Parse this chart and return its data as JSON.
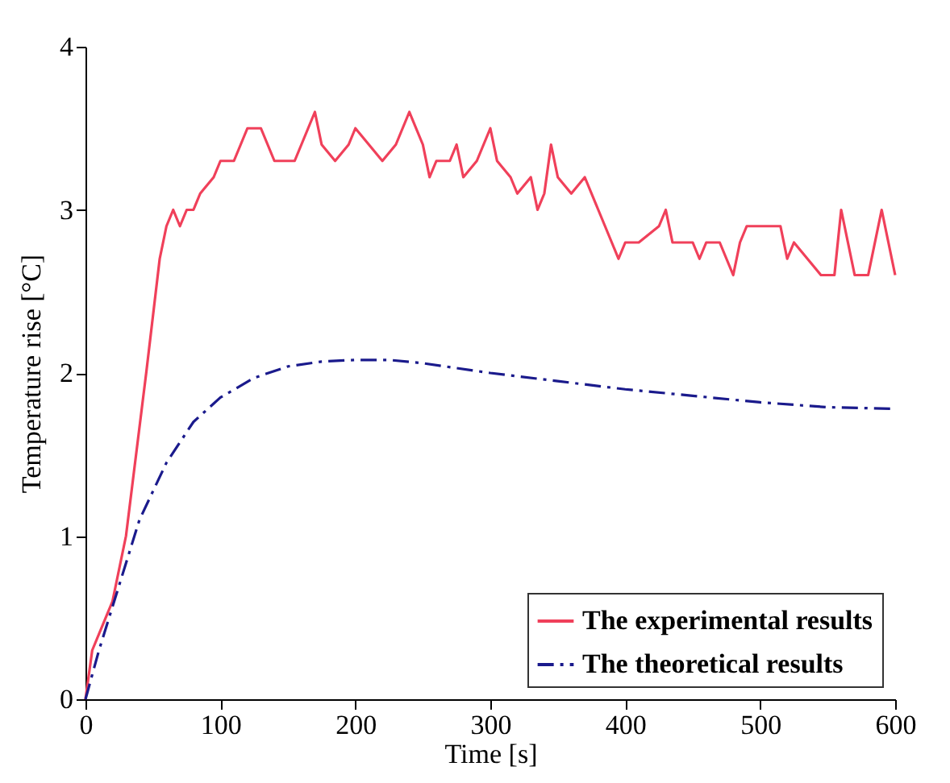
{
  "chart_data": {
    "type": "line",
    "xlabel": "Time [s]",
    "ylabel": "Temperature rise [°C]",
    "xlim": [
      0,
      600
    ],
    "xticks": [
      0,
      100,
      200,
      300,
      400,
      500,
      600
    ],
    "ylim": [
      0,
      4
    ],
    "yticks": [
      0,
      1,
      2,
      3,
      4
    ],
    "grid": false,
    "legend": "bottom right",
    "series": [
      {
        "name": "The experimental results",
        "color": "#f0405a",
        "line_style": "solid",
        "x": [
          0,
          5,
          20,
          30,
          45,
          55,
          60,
          65,
          70,
          75,
          80,
          85,
          95,
          100,
          110,
          115,
          120,
          130,
          135,
          140,
          155,
          160,
          165,
          170,
          175,
          185,
          195,
          200,
          210,
          220,
          230,
          240,
          250,
          255,
          260,
          270,
          275,
          280,
          290,
          300,
          305,
          315,
          320,
          330,
          335,
          340,
          345,
          350,
          360,
          370,
          380,
          390,
          395,
          400,
          410,
          425,
          430,
          435,
          445,
          450,
          455,
          460,
          470,
          475,
          480,
          485,
          490,
          515,
          520,
          525,
          535,
          545,
          555,
          560,
          565,
          570,
          580,
          590,
          595,
          600
        ],
        "values": [
          0,
          0.3,
          0.6,
          1.0,
          2.0,
          2.7,
          2.9,
          3.0,
          2.9,
          3.0,
          3.0,
          3.1,
          3.2,
          3.3,
          3.3,
          3.4,
          3.5,
          3.5,
          3.4,
          3.3,
          3.3,
          3.4,
          3.5,
          3.6,
          3.4,
          3.3,
          3.4,
          3.5,
          3.4,
          3.3,
          3.4,
          3.6,
          3.4,
          3.2,
          3.3,
          3.3,
          3.4,
          3.2,
          3.3,
          3.5,
          3.3,
          3.2,
          3.1,
          3.2,
          3.0,
          3.1,
          3.4,
          3.2,
          3.1,
          3.2,
          3.0,
          2.8,
          2.7,
          2.8,
          2.8,
          2.9,
          3.0,
          2.8,
          2.8,
          2.8,
          2.7,
          2.8,
          2.8,
          2.7,
          2.6,
          2.8,
          2.9,
          2.9,
          2.7,
          2.8,
          2.7,
          2.6,
          2.6,
          3.0,
          2.8,
          2.6,
          2.6,
          3.0,
          2.8,
          2.6
        ]
      },
      {
        "name": "The theoretical results",
        "color": "#1a1a8c",
        "line_style": "dashdot",
        "x": [
          0,
          10,
          25,
          40,
          60,
          80,
          100,
          125,
          150,
          175,
          200,
          225,
          250,
          300,
          350,
          400,
          450,
          500,
          550,
          600
        ],
        "values": [
          0,
          0.3,
          0.7,
          1.1,
          1.45,
          1.7,
          1.85,
          1.97,
          2.04,
          2.07,
          2.08,
          2.08,
          2.06,
          2.0,
          1.95,
          1.9,
          1.86,
          1.82,
          1.79,
          1.78
        ]
      }
    ]
  }
}
